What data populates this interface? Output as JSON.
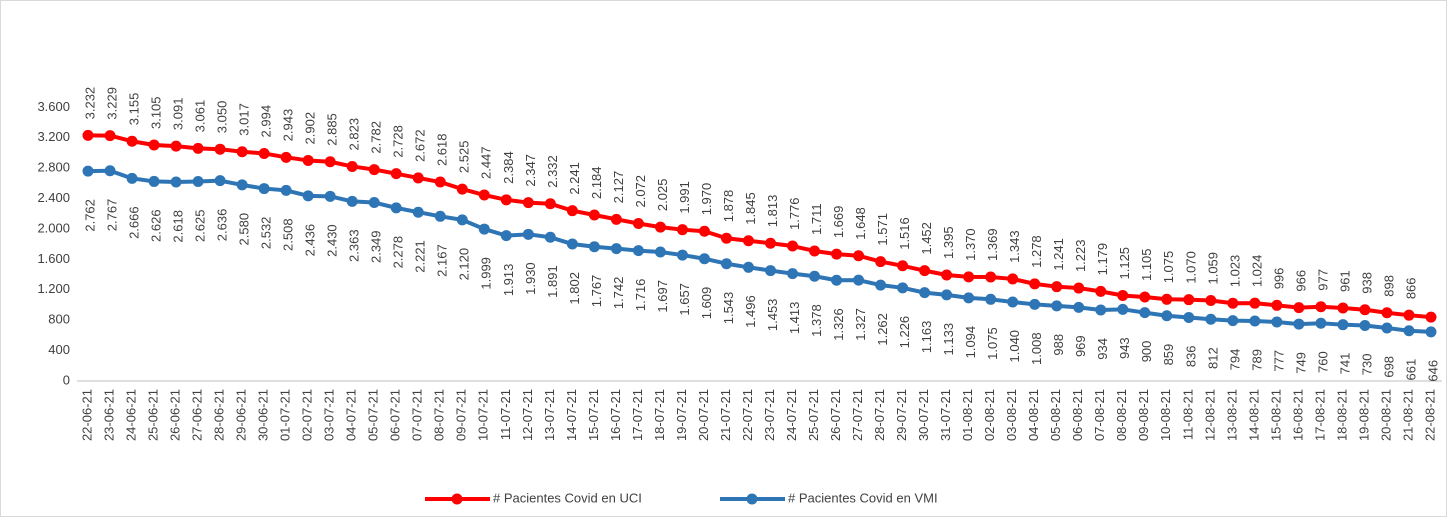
{
  "chart_data": {
    "type": "line",
    "categories": [
      "22-06-21",
      "23-06-21",
      "24-06-21",
      "25-06-21",
      "26-06-21",
      "27-06-21",
      "28-06-21",
      "29-06-21",
      "30-06-21",
      "01-07-21",
      "02-07-21",
      "03-07-21",
      "04-07-21",
      "05-07-21",
      "06-07-21",
      "07-07-21",
      "08-07-21",
      "09-07-21",
      "10-07-21",
      "11-07-21",
      "12-07-21",
      "13-07-21",
      "14-07-21",
      "15-07-21",
      "16-07-21",
      "17-07-21",
      "18-07-21",
      "19-07-21",
      "20-07-21",
      "21-07-21",
      "22-07-21",
      "23-07-21",
      "24-07-21",
      "25-07-21",
      "26-07-21",
      "27-07-21",
      "28-07-21",
      "29-07-21",
      "30-07-21",
      "31-07-21",
      "01-08-21",
      "02-08-21",
      "03-08-21",
      "04-08-21",
      "05-08-21",
      "06-08-21",
      "07-08-21",
      "08-08-21",
      "09-08-21",
      "10-08-21",
      "11-08-21",
      "12-08-21",
      "13-08-21",
      "14-08-21",
      "15-08-21",
      "16-08-21",
      "17-08-21",
      "18-08-21",
      "19-08-21",
      "20-08-21",
      "21-08-21",
      "22-08-21"
    ],
    "series": [
      {
        "name": "# Pacientes Covid en UCI",
        "color": "#ff0000",
        "values": [
          3232,
          3229,
          3155,
          3105,
          3091,
          3061,
          3050,
          3017,
          2994,
          2943,
          2902,
          2885,
          2823,
          2782,
          2728,
          2672,
          2618,
          2525,
          2447,
          2384,
          2347,
          2332,
          2241,
          2184,
          2127,
          2072,
          2025,
          1991,
          1970,
          1878,
          1845,
          1813,
          1776,
          1711,
          1669,
          1648,
          1571,
          1516,
          1452,
          1395,
          1370,
          1369,
          1343,
          1278,
          1241,
          1223,
          1179,
          1125,
          1105,
          1075,
          1070,
          1059,
          1023,
          1024,
          996,
          966,
          977,
          961,
          938,
          898,
          866,
          840
        ],
        "value_labels": [
          "3.232",
          "3.229",
          "3.155",
          "3.105",
          "3.091",
          "3.061",
          "3.050",
          "3.017",
          "2.994",
          "2.943",
          "2.902",
          "2.885",
          "2.823",
          "2.782",
          "2.728",
          "2.672",
          "2.618",
          "2.525",
          "2.447",
          "2.384",
          "2.347",
          "2.332",
          "2.241",
          "2.184",
          "2.127",
          "2.072",
          "2.025",
          "1.991",
          "1.970",
          "1.878",
          "1.845",
          "1.813",
          "1.776",
          "1.711",
          "1.669",
          "1.648",
          "1.571",
          "1.516",
          "1.452",
          "1.395",
          "1.370",
          "1.369",
          "1.343",
          "1.278",
          "1.241",
          "1.223",
          "1.179",
          "1.125",
          "1.105",
          "1.075",
          "1.070",
          "1.059",
          "1.023",
          "1.024",
          "996",
          "966",
          "977",
          "961",
          "938",
          "898",
          "866",
          null
        ]
      },
      {
        "name": "# Pacientes Covid en VMI",
        "color": "#2e75b6",
        "values": [
          2762,
          2767,
          2666,
          2626,
          2618,
          2625,
          2636,
          2580,
          2532,
          2508,
          2436,
          2430,
          2363,
          2349,
          2278,
          2221,
          2167,
          2120,
          1999,
          1913,
          1930,
          1891,
          1802,
          1767,
          1742,
          1716,
          1697,
          1657,
          1609,
          1543,
          1496,
          1453,
          1413,
          1378,
          1326,
          1327,
          1262,
          1226,
          1163,
          1133,
          1094,
          1075,
          1040,
          1008,
          988,
          969,
          934,
          943,
          900,
          859,
          836,
          812,
          794,
          789,
          777,
          749,
          760,
          741,
          730,
          698,
          661,
          646
        ],
        "value_labels": [
          "2.762",
          "2.767",
          "2.666",
          "2.626",
          "2.618",
          "2.625",
          "2.636",
          "2.580",
          "2.532",
          "2.508",
          "2.436",
          "2.430",
          "2.363",
          "2.349",
          "2.278",
          "2.221",
          "2.167",
          "2.120",
          "1.999",
          "1.913",
          "1.930",
          "1.891",
          "1.802",
          "1.767",
          "1.742",
          "1.716",
          "1.697",
          "1.657",
          "1.609",
          "1.543",
          "1.496",
          "1.453",
          "1.413",
          "1.378",
          "1.326",
          "1.327",
          "1.262",
          "1.226",
          "1.163",
          "1.133",
          "1.094",
          "1.075",
          "1.040",
          "1.008",
          "988",
          "969",
          "934",
          "943",
          "900",
          "859",
          "836",
          "812",
          "794",
          "789",
          "777",
          "749",
          "760",
          "741",
          "730",
          "698",
          "661",
          "646"
        ]
      }
    ],
    "ylim": [
      0,
      4000
    ],
    "yticks": [
      0,
      400,
      {
        "value": 800,
        "label": "800"
      },
      {
        "value": 1200,
        "label": "1.200"
      },
      {
        "value": 1600,
        "label": "1.600"
      },
      {
        "value": 2000,
        "label": "2.000"
      },
      {
        "value": 2400,
        "label": "2.400"
      },
      {
        "value": 2800,
        "label": "2.800"
      },
      {
        "value": 3200,
        "label": "3.200"
      },
      {
        "value": 3600,
        "label": "3.600"
      }
    ],
    "grid": false,
    "legend": "bottom"
  }
}
